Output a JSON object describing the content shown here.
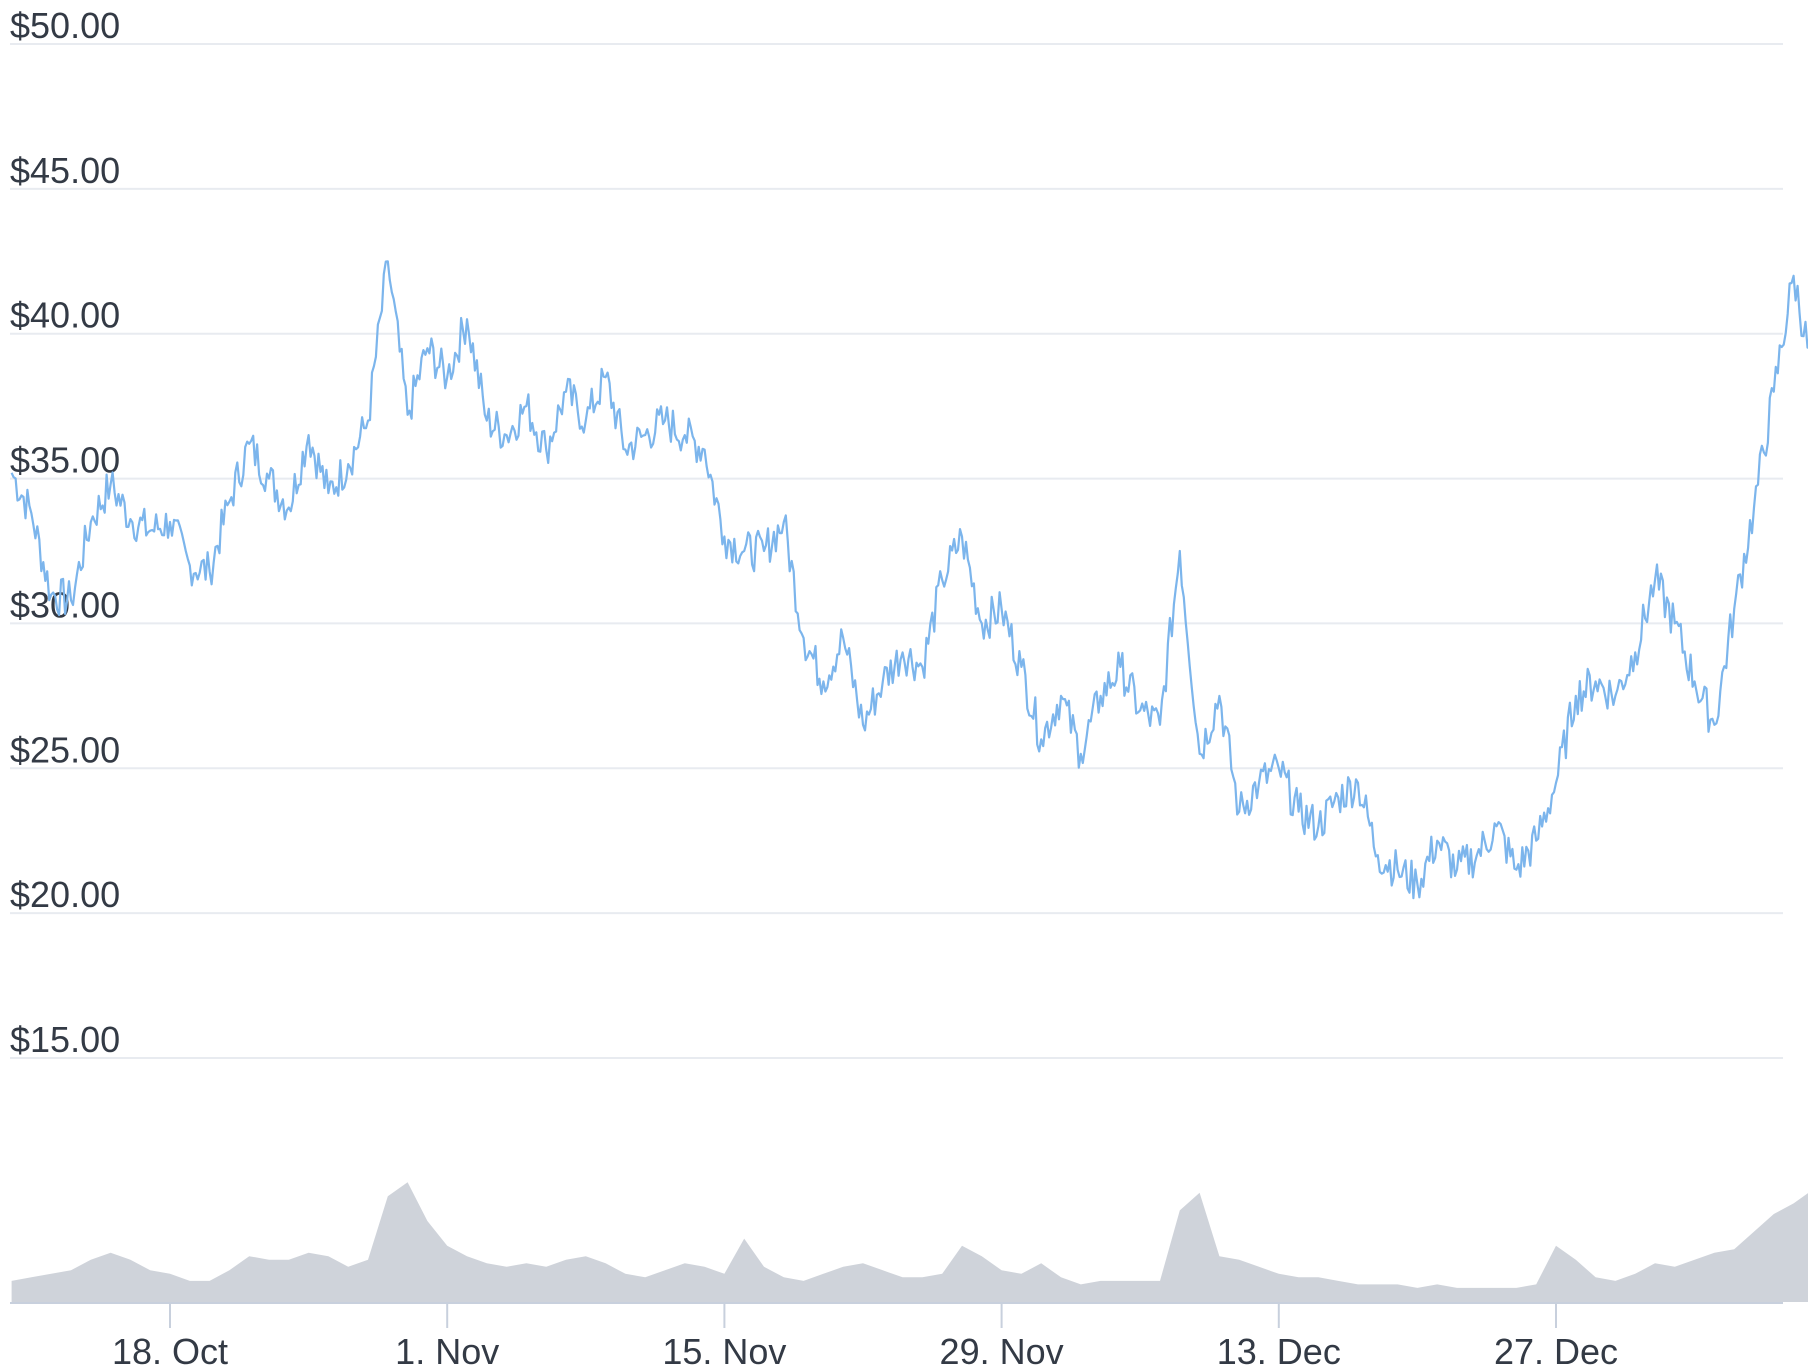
{
  "chart_data": {
    "type": "line",
    "y_axis": {
      "ticks": [
        15,
        20,
        25,
        30,
        35,
        40,
        45,
        50
      ],
      "tick_labels": [
        "$15.00",
        "$20.00",
        "$25.00",
        "$30.00",
        "$35.00",
        "$40.00",
        "$45.00",
        "$50.00"
      ],
      "ylim": [
        15,
        50
      ],
      "grid": true
    },
    "x_axis": {
      "tick_labels": [
        "18. Oct",
        "1. Nov",
        "15. Nov",
        "29. Nov",
        "13. Dec",
        "27. Dec"
      ],
      "tick_dates": [
        "10-18",
        "11-01",
        "11-15",
        "11-29",
        "12-13",
        "12-27"
      ],
      "range": [
        "10-10",
        "01-10"
      ]
    },
    "series": [
      {
        "type": "line",
        "color": "#7cb5ec",
        "points": [
          [
            "10-10",
            35.2
          ],
          [
            "10-11",
            33.8
          ],
          [
            "10-12",
            31.0
          ],
          [
            "10-13",
            30.8
          ],
          [
            "10-14",
            33.5
          ],
          [
            "10-15",
            34.8
          ],
          [
            "10-16",
            33.6
          ],
          [
            "10-17",
            33.2
          ],
          [
            "10-18",
            33.5
          ],
          [
            "10-19",
            32.0
          ],
          [
            "10-20",
            31.8
          ],
          [
            "10-21",
            34.2
          ],
          [
            "10-22",
            36.2
          ],
          [
            "10-23",
            35.0
          ],
          [
            "10-24",
            34.0
          ],
          [
            "10-25",
            36.5
          ],
          [
            "10-26",
            34.5
          ],
          [
            "10-27",
            35.5
          ],
          [
            "10-28",
            37.0
          ],
          [
            "10-29",
            42.5
          ],
          [
            "10-30",
            37.2
          ],
          [
            "10-31",
            39.5
          ],
          [
            "11-01",
            38.5
          ],
          [
            "11-02",
            40.5
          ],
          [
            "11-03",
            37.0
          ],
          [
            "11-04",
            36.5
          ],
          [
            "11-05",
            37.5
          ],
          [
            "11-06",
            36.0
          ],
          [
            "11-07",
            38.0
          ],
          [
            "11-08",
            37.0
          ],
          [
            "11-09",
            38.5
          ],
          [
            "11-10",
            36.0
          ],
          [
            "11-11",
            36.5
          ],
          [
            "11-12",
            37.0
          ],
          [
            "11-13",
            36.5
          ],
          [
            "11-14",
            36.0
          ],
          [
            "11-15",
            33.0
          ],
          [
            "11-16",
            32.5
          ],
          [
            "11-17",
            32.5
          ],
          [
            "11-18",
            33.5
          ],
          [
            "11-19",
            29.5
          ],
          [
            "11-20",
            28.0
          ],
          [
            "11-21",
            29.5
          ],
          [
            "11-22",
            26.5
          ],
          [
            "11-23",
            28.0
          ],
          [
            "11-24",
            29.0
          ],
          [
            "11-25",
            28.5
          ],
          [
            "11-26",
            31.5
          ],
          [
            "11-27",
            33.0
          ],
          [
            "11-28",
            30.0
          ],
          [
            "11-29",
            30.5
          ],
          [
            "11-30",
            28.5
          ],
          [
            "12-01",
            26.0
          ],
          [
            "12-02",
            27.5
          ],
          [
            "12-03",
            25.5
          ],
          [
            "12-04",
            27.5
          ],
          [
            "12-05",
            28.5
          ],
          [
            "12-06",
            27.0
          ],
          [
            "12-07",
            26.5
          ],
          [
            "12-08",
            32.5
          ],
          [
            "12-09",
            25.5
          ],
          [
            "12-10",
            27.5
          ],
          [
            "12-11",
            23.5
          ],
          [
            "12-12",
            24.5
          ],
          [
            "12-13",
            25.0
          ],
          [
            "12-14",
            23.5
          ],
          [
            "12-15",
            23.0
          ],
          [
            "12-16",
            24.0
          ],
          [
            "12-17",
            24.5
          ],
          [
            "12-18",
            22.0
          ],
          [
            "12-19",
            21.5
          ],
          [
            "12-20",
            21.0
          ],
          [
            "12-21",
            22.5
          ],
          [
            "12-22",
            21.5
          ],
          [
            "12-23",
            22.0
          ],
          [
            "12-24",
            23.0
          ],
          [
            "12-25",
            21.5
          ],
          [
            "12-26",
            22.5
          ],
          [
            "12-27",
            24.5
          ],
          [
            "12-28",
            27.5
          ],
          [
            "12-29",
            28.0
          ],
          [
            "12-30",
            27.5
          ],
          [
            "12-31",
            29.0
          ],
          [
            "01-01",
            31.5
          ],
          [
            "01-02",
            30.0
          ],
          [
            "01-03",
            28.0
          ],
          [
            "01-04",
            26.5
          ],
          [
            "01-05",
            30.5
          ],
          [
            "01-06",
            34.0
          ],
          [
            "01-07",
            38.0
          ],
          [
            "01-08",
            42.0
          ],
          [
            "01-09",
            38.5
          ],
          [
            "01-10",
            43.5
          ]
        ]
      },
      {
        "type": "area",
        "color": "#cfd3da",
        "points": [
          [
            "10-10",
            0.6
          ],
          [
            "10-11",
            0.7
          ],
          [
            "10-12",
            0.8
          ],
          [
            "10-13",
            0.9
          ],
          [
            "10-14",
            1.2
          ],
          [
            "10-15",
            1.4
          ],
          [
            "10-16",
            1.2
          ],
          [
            "10-17",
            0.9
          ],
          [
            "10-18",
            0.8
          ],
          [
            "10-19",
            0.6
          ],
          [
            "10-20",
            0.6
          ],
          [
            "10-21",
            0.9
          ],
          [
            "10-22",
            1.3
          ],
          [
            "10-23",
            1.2
          ],
          [
            "10-24",
            1.2
          ],
          [
            "10-25",
            1.4
          ],
          [
            "10-26",
            1.3
          ],
          [
            "10-27",
            1.0
          ],
          [
            "10-28",
            1.2
          ],
          [
            "10-29",
            3.0
          ],
          [
            "10-30",
            3.4
          ],
          [
            "10-31",
            2.3
          ],
          [
            "11-01",
            1.6
          ],
          [
            "11-02",
            1.3
          ],
          [
            "11-03",
            1.1
          ],
          [
            "11-04",
            1.0
          ],
          [
            "11-05",
            1.1
          ],
          [
            "11-06",
            1.0
          ],
          [
            "11-07",
            1.2
          ],
          [
            "11-08",
            1.3
          ],
          [
            "11-09",
            1.1
          ],
          [
            "11-10",
            0.8
          ],
          [
            "11-11",
            0.7
          ],
          [
            "11-12",
            0.9
          ],
          [
            "11-13",
            1.1
          ],
          [
            "11-14",
            1.0
          ],
          [
            "11-15",
            0.8
          ],
          [
            "11-16",
            1.8
          ],
          [
            "11-17",
            1.0
          ],
          [
            "11-18",
            0.7
          ],
          [
            "11-19",
            0.6
          ],
          [
            "11-20",
            0.8
          ],
          [
            "11-21",
            1.0
          ],
          [
            "11-22",
            1.1
          ],
          [
            "11-23",
            0.9
          ],
          [
            "11-24",
            0.7
          ],
          [
            "11-25",
            0.7
          ],
          [
            "11-26",
            0.8
          ],
          [
            "11-27",
            1.6
          ],
          [
            "11-28",
            1.3
          ],
          [
            "11-29",
            0.9
          ],
          [
            "11-30",
            0.8
          ],
          [
            "12-01",
            1.1
          ],
          [
            "12-02",
            0.7
          ],
          [
            "12-03",
            0.5
          ],
          [
            "12-04",
            0.6
          ],
          [
            "12-05",
            0.6
          ],
          [
            "12-06",
            0.6
          ],
          [
            "12-07",
            0.6
          ],
          [
            "12-08",
            2.6
          ],
          [
            "12-09",
            3.1
          ],
          [
            "12-10",
            1.3
          ],
          [
            "12-11",
            1.2
          ],
          [
            "12-12",
            1.0
          ],
          [
            "12-13",
            0.8
          ],
          [
            "12-14",
            0.7
          ],
          [
            "12-15",
            0.7
          ],
          [
            "12-16",
            0.6
          ],
          [
            "12-17",
            0.5
          ],
          [
            "12-18",
            0.5
          ],
          [
            "12-19",
            0.5
          ],
          [
            "12-20",
            0.4
          ],
          [
            "12-21",
            0.5
          ],
          [
            "12-22",
            0.4
          ],
          [
            "12-23",
            0.4
          ],
          [
            "12-24",
            0.4
          ],
          [
            "12-25",
            0.4
          ],
          [
            "12-26",
            0.5
          ],
          [
            "12-27",
            1.6
          ],
          [
            "12-28",
            1.2
          ],
          [
            "12-29",
            0.7
          ],
          [
            "12-30",
            0.6
          ],
          [
            "12-31",
            0.8
          ],
          [
            "01-01",
            1.1
          ],
          [
            "01-02",
            1.0
          ],
          [
            "01-03",
            1.2
          ],
          [
            "01-04",
            1.4
          ],
          [
            "01-05",
            1.5
          ],
          [
            "01-06",
            2.0
          ],
          [
            "01-07",
            2.5
          ],
          [
            "01-08",
            2.8
          ],
          [
            "01-09",
            3.2
          ],
          [
            "01-10",
            4.4
          ]
        ]
      }
    ]
  }
}
